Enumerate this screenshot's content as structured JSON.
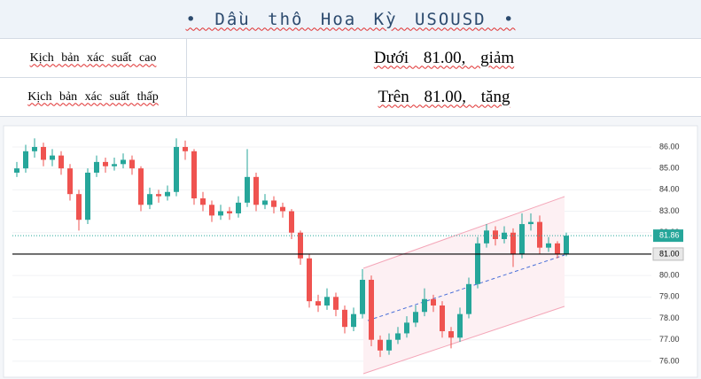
{
  "header": {
    "title": "• Dầu thô Hoa Kỳ USOUSD •"
  },
  "table": {
    "rows": [
      [
        "Kịch bản xác suất cao",
        "Dưới 81.00, giảm"
      ],
      [
        "Kịch bản xác suất thấp",
        "Trên 81.00, tăng"
      ]
    ]
  },
  "chart_data": {
    "type": "candlestick",
    "up_color": "#26a69a",
    "down_color": "#ef5350",
    "open": [
      84.8,
      85.0,
      85.8,
      86.0,
      85.4,
      85.6,
      85.0,
      83.8,
      82.6,
      84.8,
      85.3,
      85.1,
      85.2,
      85.4,
      85.0,
      83.3,
      83.8,
      83.7,
      83.9,
      86.0,
      85.8,
      83.6,
      83.3,
      82.8,
      83.0,
      82.9,
      83.4,
      84.6,
      83.3,
      83.5,
      83.2,
      83.0,
      82.0,
      80.8,
      78.8,
      78.6,
      79.0,
      78.4,
      77.6,
      78.2,
      79.8,
      77.0,
      76.5,
      77.0,
      77.3,
      77.8,
      78.3,
      78.9,
      78.6,
      77.4,
      77.1,
      78.2,
      79.6,
      81.5,
      82.1,
      81.7,
      82.0,
      81.0,
      82.4,
      82.5,
      81.3,
      81.5,
      81.0
    ],
    "high": [
      85.3,
      86.1,
      86.4,
      86.2,
      85.9,
      85.8,
      85.2,
      84.0,
      85.0,
      85.6,
      85.5,
      85.5,
      85.7,
      85.6,
      85.1,
      84.1,
      84.0,
      84.2,
      86.4,
      86.3,
      85.9,
      83.9,
      83.5,
      83.3,
      83.2,
      83.7,
      85.9,
      84.8,
      83.8,
      83.7,
      83.4,
      83.1,
      82.1,
      81.0,
      79.1,
      79.4,
      79.2,
      78.6,
      78.5,
      80.3,
      80.0,
      77.2,
      77.3,
      77.6,
      78.1,
      78.6,
      79.4,
      79.1,
      78.8,
      77.6,
      78.5,
      79.9,
      81.8,
      82.4,
      82.3,
      82.3,
      82.2,
      82.9,
      82.9,
      82.8,
      81.8,
      81.6,
      82.0
    ],
    "low": [
      84.6,
      84.8,
      85.5,
      85.1,
      85.1,
      84.7,
      83.5,
      82.1,
      82.4,
      84.6,
      84.8,
      84.9,
      85.0,
      84.7,
      83.0,
      83.1,
      83.4,
      83.5,
      83.7,
      85.4,
      83.3,
      83.0,
      82.5,
      82.6,
      82.6,
      82.7,
      83.2,
      83.0,
      83.1,
      82.9,
      82.7,
      81.7,
      80.5,
      78.5,
      78.3,
      78.4,
      78.1,
      77.3,
      77.4,
      78.0,
      76.7,
      76.2,
      76.3,
      76.8,
      77.1,
      77.6,
      78.1,
      78.3,
      77.1,
      76.6,
      76.9,
      78.0,
      79.4,
      81.3,
      81.4,
      81.5,
      80.4,
      80.8,
      82.1,
      81.0,
      81.1,
      80.8,
      80.9
    ],
    "close": [
      85.0,
      85.8,
      86.0,
      85.4,
      85.6,
      85.0,
      83.8,
      82.6,
      84.8,
      85.3,
      85.1,
      85.2,
      85.4,
      85.0,
      83.3,
      83.8,
      83.7,
      83.9,
      86.0,
      85.8,
      83.6,
      83.3,
      82.8,
      83.0,
      82.9,
      83.4,
      84.6,
      83.3,
      83.5,
      83.2,
      83.0,
      82.0,
      80.8,
      78.8,
      78.6,
      79.0,
      78.4,
      77.6,
      78.2,
      79.8,
      77.0,
      76.5,
      77.0,
      77.3,
      77.8,
      78.3,
      78.9,
      78.6,
      77.4,
      77.1,
      78.2,
      79.6,
      81.5,
      82.1,
      81.7,
      82.0,
      81.0,
      82.4,
      82.5,
      81.3,
      81.5,
      81.0,
      81.86
    ],
    "ylim": [
      75.5,
      86.8
    ],
    "yticks": [
      {
        "value": 76,
        "label": "76.00"
      },
      {
        "value": 77,
        "label": "77.00"
      },
      {
        "value": 78,
        "label": "78.00"
      },
      {
        "value": 79,
        "label": "79.00"
      },
      {
        "value": 80,
        "label": "80.00"
      },
      {
        "value": 81,
        "label": "81.00"
      },
      {
        "value": 82,
        "label": "82.00"
      },
      {
        "value": 83,
        "label": "83.00"
      },
      {
        "value": 84,
        "label": "84.00"
      },
      {
        "value": 85,
        "label": "85.00"
      },
      {
        "value": 86,
        "label": "86.00"
      }
    ],
    "grid": true,
    "level": {
      "value": 81,
      "label": "81.00",
      "color": "#000000"
    },
    "last_price": {
      "value": 81.86,
      "color": "#26a69a"
    }
  }
}
